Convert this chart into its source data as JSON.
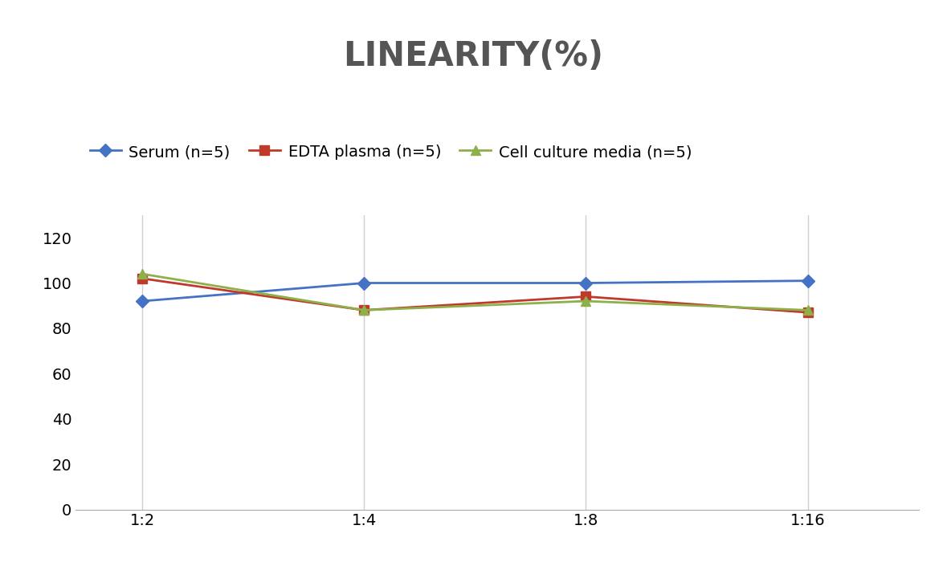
{
  "title": "LINEARITY(%)",
  "title_fontsize": 30,
  "title_fontweight": "bold",
  "title_color": "#555555",
  "x_labels": [
    "1:2",
    "1:4",
    "1:8",
    "1:16"
  ],
  "x_positions": [
    0,
    1,
    2,
    3
  ],
  "series": [
    {
      "label": "Serum (n=5)",
      "values": [
        92,
        100,
        100,
        101
      ],
      "color": "#4472C4",
      "marker": "D",
      "markersize": 8,
      "linewidth": 2
    },
    {
      "label": "EDTA plasma (n=5)",
      "values": [
        102,
        88,
        94,
        87
      ],
      "color": "#C0392B",
      "marker": "s",
      "markersize": 8,
      "linewidth": 2
    },
    {
      "label": "Cell culture media (n=5)",
      "values": [
        104,
        88,
        92,
        88
      ],
      "color": "#8DB04A",
      "marker": "^",
      "markersize": 9,
      "linewidth": 2
    }
  ],
  "ylim": [
    0,
    130
  ],
  "yticks": [
    0,
    20,
    40,
    60,
    80,
    100,
    120
  ],
  "background_color": "#ffffff",
  "grid_color": "#d0d0d0",
  "legend_fontsize": 14,
  "tick_fontsize": 14
}
